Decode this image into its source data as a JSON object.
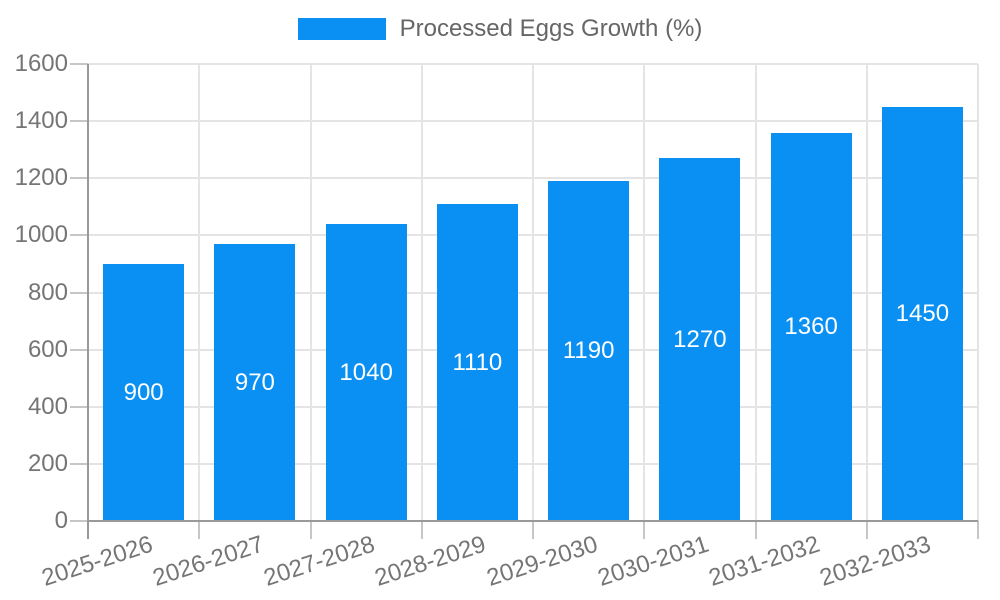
{
  "chart": {
    "legend": {
      "label": "Processed Eggs Growth (%)"
    }
  },
  "chart_data": {
    "type": "bar",
    "title": "",
    "xlabel": "",
    "ylabel": "",
    "categories": [
      "2025-2026",
      "2026-2027",
      "2027-2028",
      "2028-2029",
      "2029-2030",
      "2030-2031",
      "2031-2032",
      "2032-2033"
    ],
    "values": [
      900,
      970,
      1040,
      1110,
      1190,
      1270,
      1360,
      1450
    ],
    "series_name": "Processed Eggs Growth (%)",
    "ylim": [
      0,
      1600
    ],
    "yticks": [
      0,
      200,
      400,
      600,
      800,
      1000,
      1200,
      1400,
      1600
    ],
    "grid": true,
    "legend_position": "top",
    "x_tick_rotation_deg": -18,
    "bar_labels_visible": true,
    "colors": {
      "bar": "#0990f2",
      "bar_label": "#ffffff",
      "grid": "#e4e4e4",
      "axis": "#999999",
      "tick": "#c6c6c6",
      "tick_label": "#757575",
      "legend_text": "#666666",
      "background": "#ffffff"
    }
  }
}
